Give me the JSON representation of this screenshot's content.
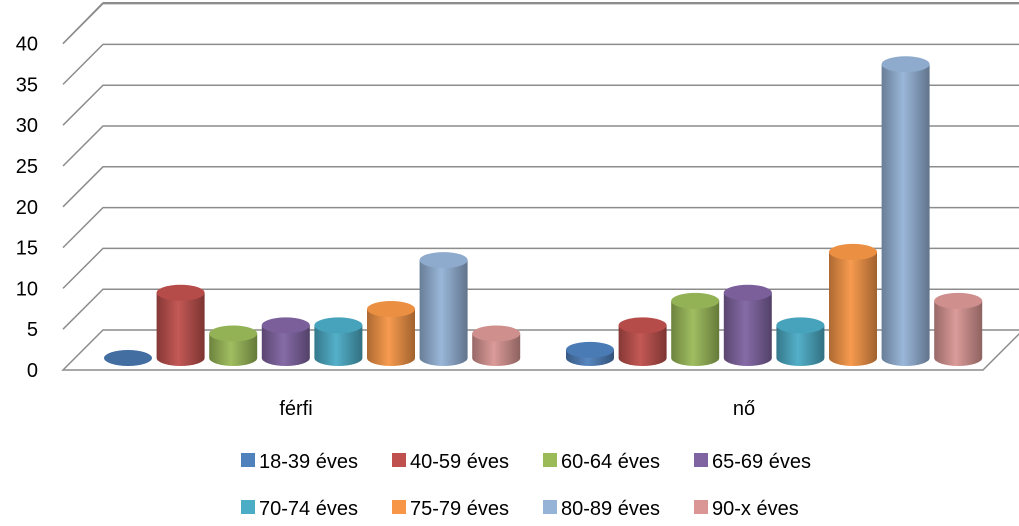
{
  "chart_data": {
    "type": "bar",
    "style": "3d-cylinder",
    "categories": [
      "férfi",
      "nő"
    ],
    "series": [
      {
        "name": "18-39 éves",
        "values": [
          0,
          1
        ],
        "color": "#4F81BD"
      },
      {
        "name": "40-59 éves",
        "values": [
          8,
          4
        ],
        "color": "#C0504D"
      },
      {
        "name": "60-64 éves",
        "values": [
          3,
          7
        ],
        "color": "#9BBB59"
      },
      {
        "name": "65-69 éves",
        "values": [
          4,
          8
        ],
        "color": "#8064A2"
      },
      {
        "name": "70-74 éves",
        "values": [
          4,
          4
        ],
        "color": "#4BACC6"
      },
      {
        "name": "75-79 éves",
        "values": [
          6,
          13
        ],
        "color": "#F79646"
      },
      {
        "name": "80-89 éves",
        "values": [
          12,
          36
        ],
        "color": "#95B3D7"
      },
      {
        "name": "90-x éves",
        "values": [
          3,
          7
        ],
        "color": "#D99694"
      }
    ],
    "yticks": [
      0,
      5,
      10,
      15,
      20,
      25,
      30,
      35,
      40
    ],
    "ylim": [
      0,
      40
    ],
    "grid": true,
    "legend_position": "bottom",
    "title": "",
    "xlabel": "",
    "ylabel": ""
  }
}
